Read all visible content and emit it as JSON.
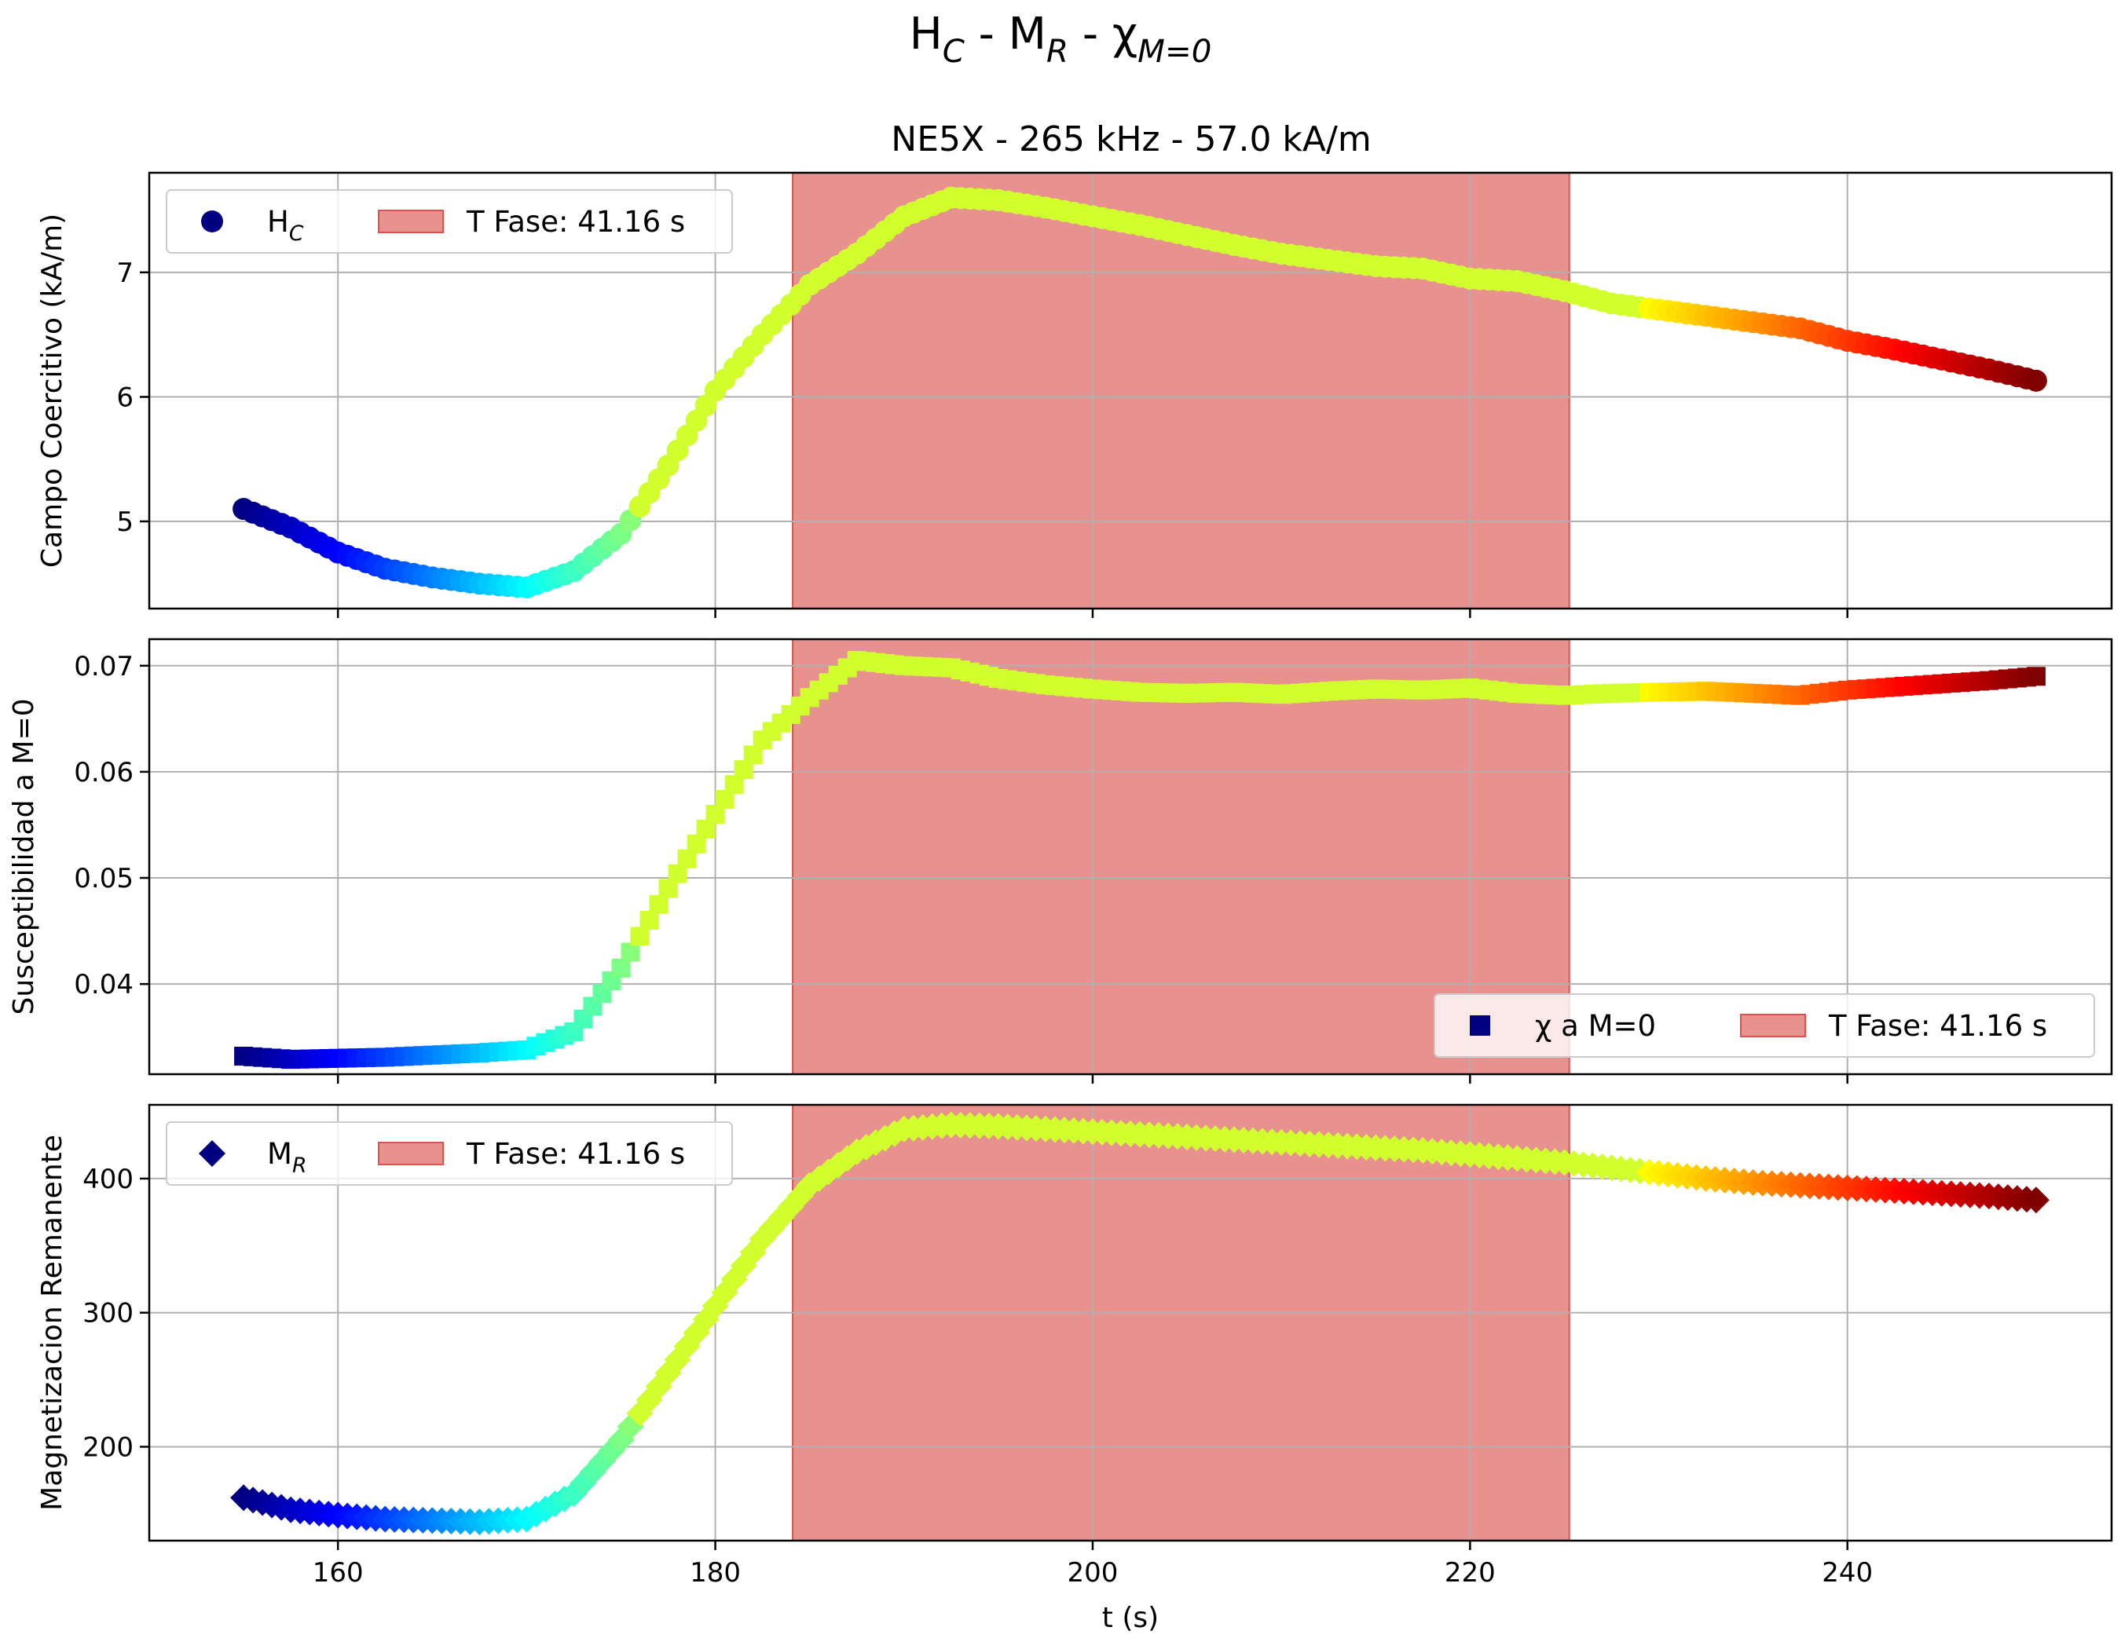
{
  "figure": {
    "suptitle": "H_C - M_R - χ_M=0",
    "title": "NE5X - 265 kHz - 57.0 kA/m"
  },
  "chart_data": [
    {
      "type": "scatter",
      "panel": "top",
      "ylabel": "Campo Coercitivo (kA/m)",
      "xlabel": "",
      "xlim": [
        150,
        254
      ],
      "ylim": [
        4.3,
        7.8
      ],
      "xticks": [
        160,
        180,
        200,
        220,
        240
      ],
      "yticks": [
        5,
        6,
        7
      ],
      "grid": true,
      "legend_position": "upper-left",
      "marker": "circle",
      "colormap": "jet",
      "series": [
        {
          "name": "H_C",
          "x": [
            155,
            157.5,
            160,
            162.5,
            165,
            167.5,
            170,
            172.5,
            175,
            177.5,
            180,
            182.5,
            185,
            187.5,
            190,
            192.5,
            195,
            197.5,
            200,
            202.5,
            205,
            207.5,
            210,
            212.5,
            215,
            217.5,
            220,
            222.5,
            225,
            227.5,
            230,
            232.5,
            235,
            237.5,
            240,
            242.5,
            245,
            247.5,
            250
          ],
          "y": [
            5.1,
            4.95,
            4.75,
            4.62,
            4.55,
            4.5,
            4.47,
            4.6,
            4.9,
            5.45,
            6.05,
            6.5,
            6.9,
            7.15,
            7.45,
            7.6,
            7.58,
            7.52,
            7.45,
            7.38,
            7.3,
            7.22,
            7.15,
            7.1,
            7.05,
            7.03,
            6.95,
            6.93,
            6.85,
            6.75,
            6.7,
            6.65,
            6.6,
            6.55,
            6.45,
            6.38,
            6.3,
            6.22,
            6.13
          ]
        }
      ],
      "shaded_region": {
        "x_start": 184.1,
        "x_end": 225.26,
        "label": "T Fase: 41.16 s",
        "color": "#e8928f"
      }
    },
    {
      "type": "scatter",
      "panel": "middle",
      "ylabel": "Susceptibilidad a M=0",
      "xlabel": "",
      "xlim": [
        150,
        254
      ],
      "ylim": [
        0.0315,
        0.0725
      ],
      "xticks": [
        160,
        180,
        200,
        220,
        240
      ],
      "yticks": [
        0.04,
        0.05,
        0.06,
        0.07
      ],
      "grid": true,
      "legend_position": "lower-right",
      "marker": "square",
      "colormap": "jet",
      "series": [
        {
          "name": "χ a M=0",
          "x": [
            155,
            157.5,
            160,
            162.5,
            165,
            167.5,
            170,
            172.5,
            175,
            177.5,
            180,
            182.5,
            185,
            187.5,
            190,
            192.5,
            195,
            197.5,
            200,
            202.5,
            205,
            207.5,
            210,
            212.5,
            215,
            217.5,
            220,
            222.5,
            225,
            227.5,
            230,
            232.5,
            235,
            237.5,
            240,
            242.5,
            245,
            247.5,
            250
          ],
          "y": [
            0.0332,
            0.0329,
            0.033,
            0.0331,
            0.0333,
            0.0335,
            0.0338,
            0.0355,
            0.0415,
            0.049,
            0.056,
            0.063,
            0.067,
            0.0705,
            0.07,
            0.0698,
            0.0688,
            0.0682,
            0.0678,
            0.0675,
            0.0674,
            0.0675,
            0.0673,
            0.0676,
            0.0678,
            0.0677,
            0.0679,
            0.0674,
            0.0672,
            0.0674,
            0.0675,
            0.0676,
            0.0674,
            0.0672,
            0.0677,
            0.068,
            0.0683,
            0.0686,
            0.069
          ]
        }
      ],
      "shaded_region": {
        "x_start": 184.1,
        "x_end": 225.26,
        "label": "T Fase: 41.16 s",
        "color": "#e8928f"
      }
    },
    {
      "type": "scatter",
      "panel": "bottom",
      "ylabel": "Magnetizacion Remanente",
      "xlabel": "t (s)",
      "xlim": [
        150,
        254
      ],
      "ylim": [
        130,
        455
      ],
      "xticks": [
        160,
        180,
        200,
        220,
        240
      ],
      "yticks": [
        200,
        300,
        400
      ],
      "grid": true,
      "legend_position": "upper-left",
      "marker": "diamond",
      "colormap": "jet",
      "series": [
        {
          "name": "M_R",
          "x": [
            155,
            157.5,
            160,
            162.5,
            165,
            167.5,
            170,
            172.5,
            175,
            177.5,
            180,
            182.5,
            185,
            187.5,
            190,
            192.5,
            195,
            197.5,
            200,
            202.5,
            205,
            207.5,
            210,
            212.5,
            215,
            217.5,
            220,
            222.5,
            225,
            227.5,
            230,
            232.5,
            235,
            237.5,
            240,
            242.5,
            245,
            247.5,
            250
          ],
          "y": [
            162,
            153,
            149,
            146,
            145,
            144,
            146,
            165,
            205,
            255,
            305,
            355,
            395,
            420,
            437,
            440,
            439,
            437,
            435,
            433,
            431,
            429,
            427,
            425,
            423,
            421,
            418,
            415,
            412,
            408,
            404,
            400,
            397,
            395,
            393,
            391,
            389,
            387,
            384
          ]
        }
      ],
      "shaded_region": {
        "x_start": 184.1,
        "x_end": 225.26,
        "label": "T Fase: 41.16 s",
        "color": "#e8928f"
      }
    }
  ]
}
